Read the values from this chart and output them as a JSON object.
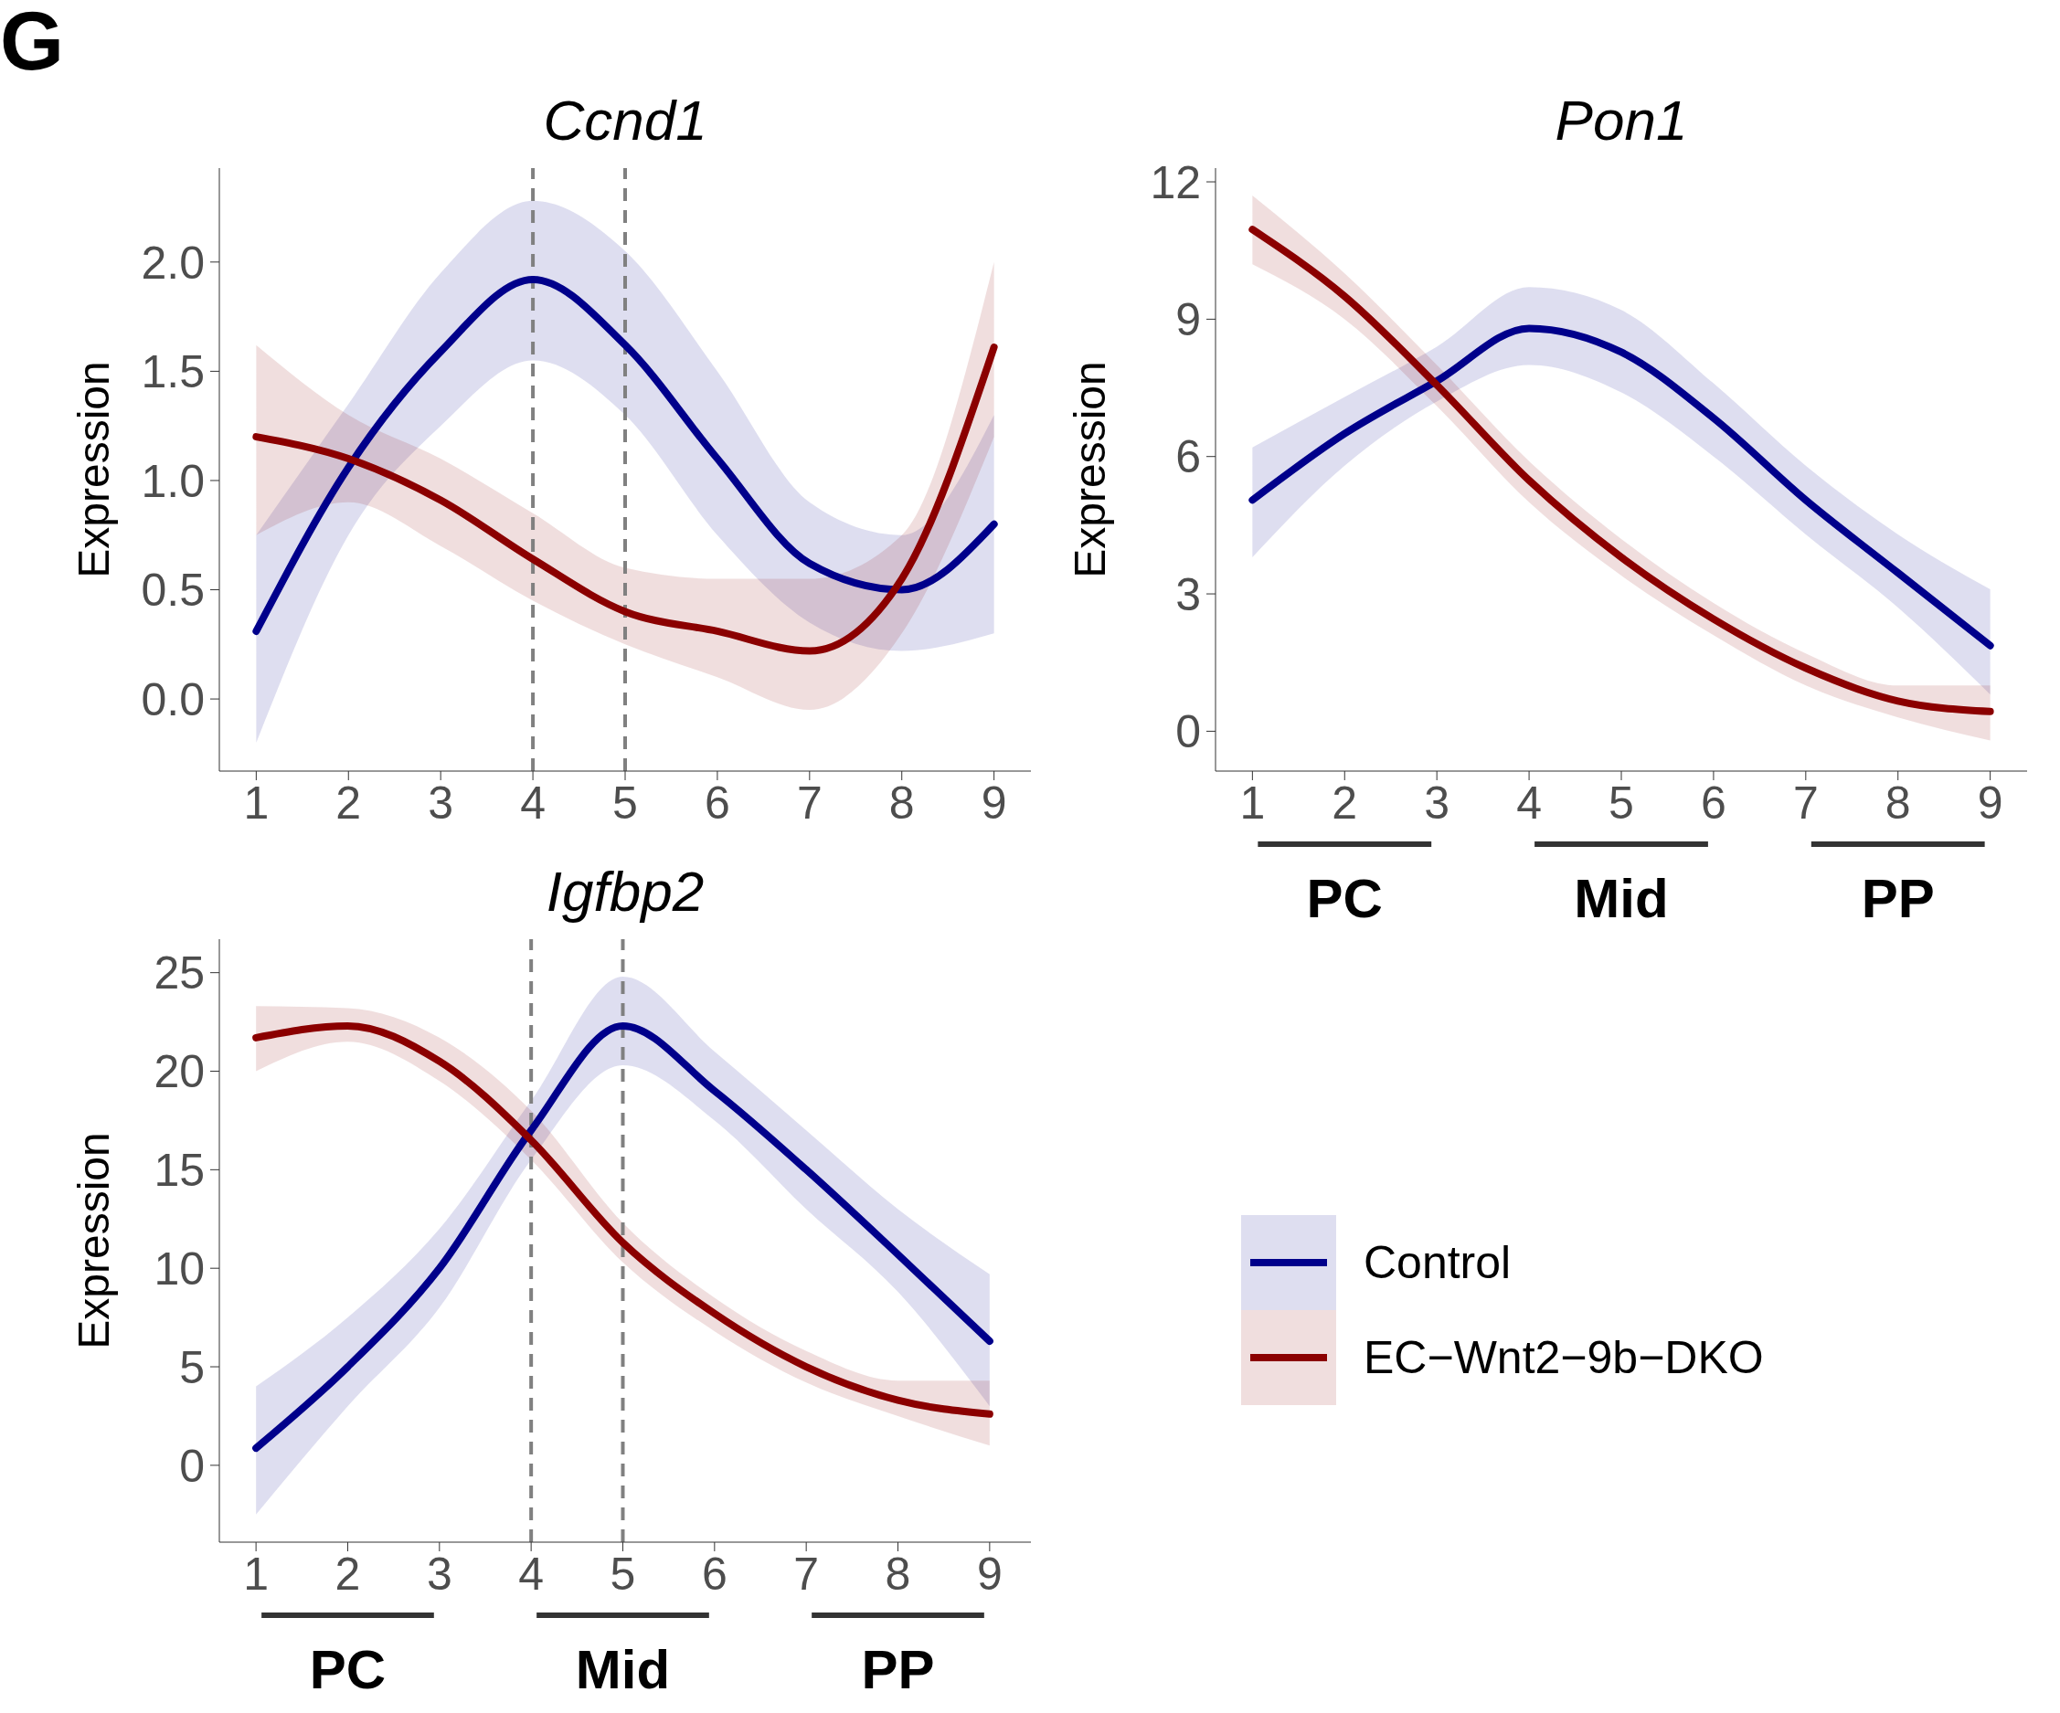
{
  "chart_data": [
    {
      "type": "line",
      "title": "Ccnd1",
      "ylabel": "Expression",
      "annotations": [
        "G"
      ],
      "x": [
        1,
        2,
        3,
        4,
        5,
        6,
        7,
        8,
        9
      ],
      "xlim": [
        0.6,
        9.4
      ],
      "xticks": [
        1,
        2,
        3,
        4,
        5,
        6,
        7,
        8,
        9
      ],
      "ylim": [
        -0.33,
        2.43
      ],
      "yticks": [
        {
          "value": 0,
          "label": "0.0"
        },
        {
          "value": 0.5,
          "label": "0.5"
        },
        {
          "value": 1,
          "label": "1.0"
        },
        {
          "value": 1.5,
          "label": "1.5"
        },
        {
          "value": 2,
          "label": "2.0"
        }
      ],
      "legend": "bottom right",
      "series": [
        {
          "name": "Control",
          "color": "#00008b",
          "values": [
            0.31,
            1.06,
            1.59,
            1.92,
            1.62,
            1.1,
            0.62,
            0.5,
            0.8
          ],
          "lower": [
            -0.2,
            0.75,
            1.25,
            1.55,
            1.3,
            0.75,
            0.35,
            0.22,
            0.3
          ],
          "upper": [
            0.75,
            1.35,
            1.95,
            2.28,
            2.05,
            1.5,
            0.9,
            0.75,
            1.3
          ]
        },
        {
          "name": "EC−Wnt2−9b−DKO",
          "color": "#8b0000",
          "values": [
            1.2,
            1.1,
            0.91,
            0.64,
            0.4,
            0.31,
            0.22,
            0.55,
            1.61
          ],
          "lower": [
            0.75,
            0.9,
            0.7,
            0.45,
            0.25,
            0.1,
            -0.05,
            0.3,
            1.2
          ],
          "upper": [
            1.62,
            1.3,
            1.1,
            0.85,
            0.6,
            0.55,
            0.55,
            0.75,
            2.0
          ]
        }
      ],
      "ref_lines": [
        {
          "axis": "x",
          "value": 4,
          "color": "#808080",
          "line_style": "dashed"
        },
        {
          "axis": "x",
          "value": 5,
          "color": "#808080",
          "line_style": "dashed"
        }
      ]
    },
    {
      "type": "line",
      "title": "Pon1",
      "ylabel": "Expression",
      "x": [
        1,
        2,
        3,
        4,
        5,
        6,
        7,
        8,
        9
      ],
      "xlim": [
        0.6,
        9.4
      ],
      "xticks": [
        1,
        2,
        3,
        4,
        5,
        6,
        7,
        8,
        9
      ],
      "ylim": [
        -0.87,
        12.3
      ],
      "yticks": [
        0,
        3,
        6,
        9,
        12
      ],
      "series": [
        {
          "color": "#00008b",
          "values": [
            5.05,
            6.5,
            7.65,
            8.8,
            8.28,
            6.84,
            5.05,
            3.46,
            1.87
          ],
          "lower": [
            3.8,
            5.8,
            7.2,
            8.0,
            7.4,
            6.0,
            4.3,
            2.7,
            0.8
          ],
          "upper": [
            6.2,
            7.3,
            8.4,
            9.7,
            9.2,
            7.6,
            5.8,
            4.3,
            3.1
          ]
        },
        {
          "color": "#8b0000",
          "values": [
            10.96,
            9.5,
            7.56,
            5.48,
            3.8,
            2.45,
            1.38,
            0.66,
            0.43
          ],
          "lower": [
            10.2,
            9.0,
            7.1,
            5.0,
            3.4,
            2.1,
            1.0,
            0.3,
            -0.2
          ],
          "upper": [
            11.7,
            10.0,
            8.0,
            5.9,
            4.2,
            2.8,
            1.7,
            1.0,
            1.0
          ]
        }
      ],
      "annotations": [
        "PC",
        "Mid",
        "PP"
      ]
    },
    {
      "type": "line",
      "title": "Igfbp2",
      "ylabel": "Expression",
      "x": [
        1,
        2,
        3,
        4,
        5,
        6,
        7,
        8,
        9
      ],
      "xlim": [
        0.6,
        9.45
      ],
      "xticks": [
        1,
        2,
        3,
        4,
        5,
        6,
        7,
        8,
        9
      ],
      "ylim": [
        -3.9,
        26.7
      ],
      "yticks": [
        0,
        5,
        10,
        15,
        20,
        25
      ],
      "series": [
        {
          "color": "#00008b",
          "values": [
            0.87,
            5,
            10,
            17,
            22.3,
            19,
            15,
            10.7,
            6.3
          ],
          "lower": [
            -2.5,
            3,
            8,
            15.5,
            20.3,
            17.5,
            13,
            8.8,
            3
          ],
          "upper": [
            4,
            7.5,
            12,
            18.5,
            24.8,
            21,
            17,
            13,
            9.7
          ]
        },
        {
          "color": "#8b0000",
          "values": [
            21.7,
            22.3,
            20.5,
            16.5,
            11.3,
            7.7,
            5,
            3.3,
            2.6
          ],
          "lower": [
            20,
            21.5,
            19.5,
            15.5,
            10.3,
            6.8,
            4.2,
            2.5,
            1
          ],
          "upper": [
            23.3,
            23.2,
            21.7,
            18,
            12.3,
            8.5,
            5.8,
            4.3,
            4.3
          ]
        }
      ],
      "ref_lines": [
        {
          "axis": "x",
          "value": 4,
          "color": "#808080",
          "line_style": "dashed"
        },
        {
          "axis": "x",
          "value": 5,
          "color": "#808080",
          "line_style": "dashed"
        }
      ],
      "annotations": [
        "PC",
        "Mid",
        "PP"
      ]
    }
  ]
}
